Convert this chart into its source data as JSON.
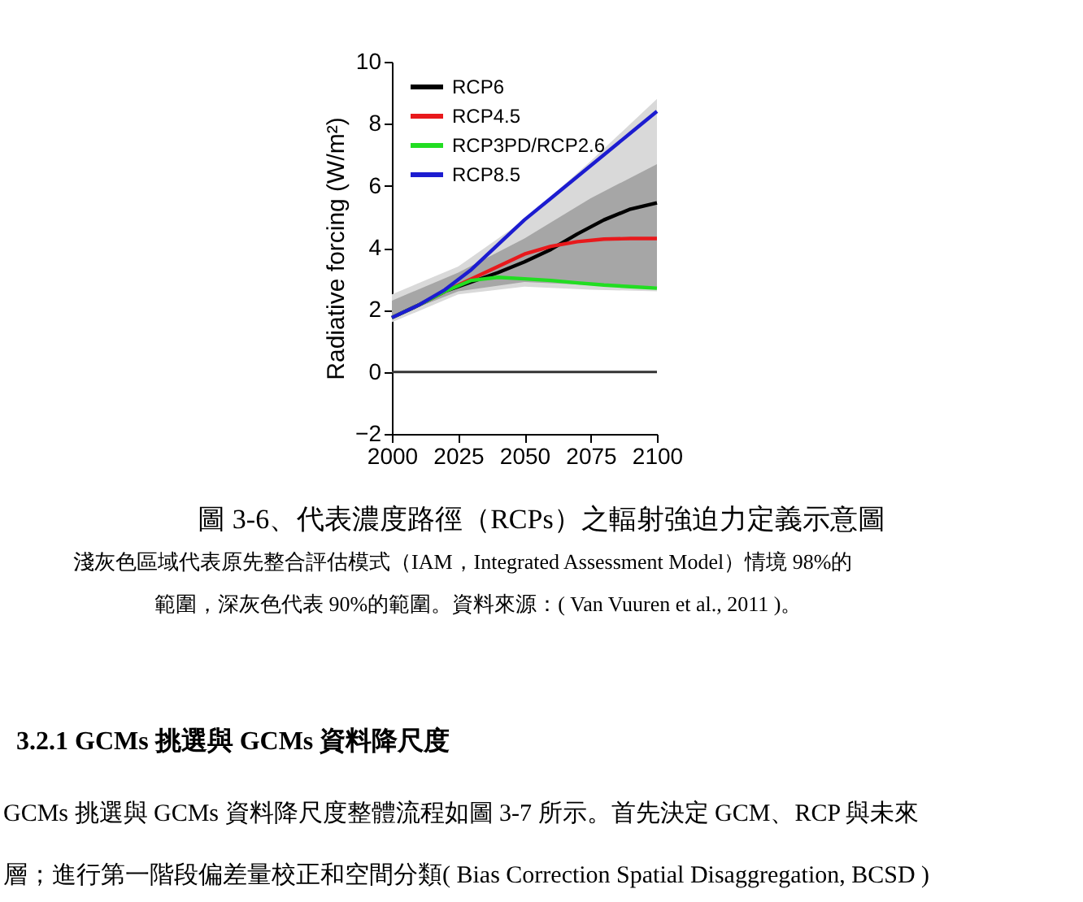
{
  "chart_data": {
    "type": "line",
    "ylabel": "Radiative forcing (W/m²)",
    "xlim": [
      2000,
      2100
    ],
    "xticks": [
      2000,
      2025,
      2050,
      2075,
      2100
    ],
    "ylim": [
      -2,
      10
    ],
    "yticks": [
      -2,
      0,
      2,
      4,
      6,
      8,
      10
    ],
    "legend": "top left",
    "grid": false,
    "x": [
      2000,
      2010,
      2020,
      2030,
      2040,
      2050,
      2060,
      2070,
      2080,
      2090,
      2100
    ],
    "series": [
      {
        "color": "#d9d9d9",
        "x": [
          2000,
          2025,
          2050,
          2075,
          2100
        ],
        "values": [
          null,
          null,
          null,
          null,
          null
        ],
        "lower": [
          1.6,
          2.5,
          2.75,
          2.65,
          2.6
        ],
        "upper": [
          2.5,
          3.4,
          4.9,
          6.8,
          8.8
        ]
      },
      {
        "color": "#a6a6a6",
        "x": [
          2000,
          2025,
          2050,
          2075,
          2100
        ],
        "values": [
          null,
          null,
          null,
          null,
          null
        ],
        "lower": [
          1.75,
          2.6,
          2.9,
          2.8,
          2.75
        ],
        "upper": [
          2.3,
          3.2,
          4.3,
          5.6,
          6.7
        ]
      },
      {
        "name": "RCP6",
        "color": "#000000",
        "values": [
          1.75,
          2.15,
          2.6,
          2.9,
          3.2,
          3.55,
          3.95,
          4.45,
          4.9,
          5.25,
          5.45
        ]
      },
      {
        "name": "RCP4.5",
        "color": "#e8191c",
        "values": [
          1.75,
          2.15,
          2.6,
          3.0,
          3.4,
          3.8,
          4.05,
          4.2,
          4.28,
          4.3,
          4.3
        ]
      },
      {
        "name": "RCP3PD/RCP2.6",
        "color": "#22dd22",
        "values": [
          1.75,
          2.15,
          2.6,
          2.95,
          3.05,
          3.0,
          2.95,
          2.87,
          2.8,
          2.75,
          2.7
        ]
      },
      {
        "name": "RCP8.5",
        "color": "#1c1cd0",
        "values": [
          1.75,
          2.15,
          2.65,
          3.3,
          4.1,
          4.9,
          5.6,
          6.3,
          7.0,
          7.7,
          8.4
        ]
      }
    ],
    "ref_lines": [
      {
        "axis": "y",
        "value": 0,
        "label": null,
        "color": "#333333"
      }
    ],
    "annotations": [
      "圖 3-6、代表濃度路徑（RCPs）之輻射強迫力定義示意圖",
      "淺灰色區域代表原先整合評估模式（IAM，Integrated Assessment Model）情境 98%的",
      "範圍，深灰色代表 90%的範圍。資料來源：( Van Vuuren et al., 2011 )。",
      "3.2.1  GCMs 挑選與 GCMs 資料降尺度",
      "GCMs 挑選與 GCMs 資料降尺度整體流程如圖 3-7 所示。首先決定 GCM、RCP 與未來",
      "層；進行第一階段偏差量校正和空間分類( Bias Correction Spatial Disaggregation, BCSD )"
    ]
  }
}
